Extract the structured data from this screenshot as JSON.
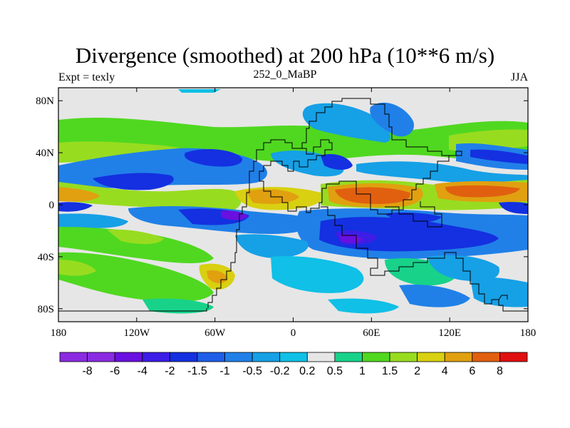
{
  "chart_data": {
    "type": "heatmap",
    "title": "Divergence (smoothed) at 200 hPa (10**6 m/s)",
    "subtitle_left": "Expt = texly",
    "subtitle_center": "252_0_MaBP",
    "subtitle_right": "JJA",
    "x_range": [
      -180,
      180
    ],
    "y_range": [
      -90,
      90
    ],
    "x_ticks": [
      {
        "value": -180,
        "label": "180"
      },
      {
        "value": -120,
        "label": "120W"
      },
      {
        "value": -60,
        "label": "60W"
      },
      {
        "value": 0,
        "label": "0"
      },
      {
        "value": 60,
        "label": "60E"
      },
      {
        "value": 120,
        "label": "120E"
      },
      {
        "value": 180,
        "label": "180"
      }
    ],
    "y_ticks": [
      {
        "value": 80,
        "label": "80N"
      },
      {
        "value": 40,
        "label": "40N"
      },
      {
        "value": 0,
        "label": "0"
      },
      {
        "value": -40,
        "label": "40S"
      },
      {
        "value": -80,
        "label": "80S"
      }
    ],
    "levels": [
      "-8",
      "-6",
      "-4",
      "-2",
      "-1.5",
      "-1",
      "-0.5",
      "-0.2",
      "0.2",
      "0.5",
      "1",
      "1.5",
      "2",
      "4",
      "6",
      "8"
    ],
    "colors": [
      "#8a2be2",
      "#6a10e0",
      "#3c1ee6",
      "#1430e0",
      "#1e5ee8",
      "#2080e8",
      "#16a0e6",
      "#10c0e6",
      "#e6e6e6",
      "#18d28a",
      "#50d820",
      "#98dc20",
      "#d8d010",
      "#e0a010",
      "#e06010",
      "#e01010"
    ],
    "features": [
      {
        "region": "northern mid-latitude band",
        "lon": [
          -170,
          180
        ],
        "lat": [
          40,
          60
        ],
        "level_index": 10
      },
      {
        "region": "tropical Pacific divergence max",
        "lon": [
          105,
          160
        ],
        "lat": [
          2,
          15
        ],
        "level_index": 14
      },
      {
        "region": "African/Indian divergence max",
        "lon": [
          35,
          100
        ],
        "lat": [
          0,
          12
        ],
        "level_index": 14
      },
      {
        "region": "southern convergence minimum",
        "lon": [
          20,
          120
        ],
        "lat": [
          -40,
          -15
        ],
        "level_index": 2
      },
      {
        "region": "North Pacific convergence",
        "lon": [
          -150,
          -40
        ],
        "lat": [
          20,
          45
        ],
        "level_index": 3
      }
    ]
  }
}
